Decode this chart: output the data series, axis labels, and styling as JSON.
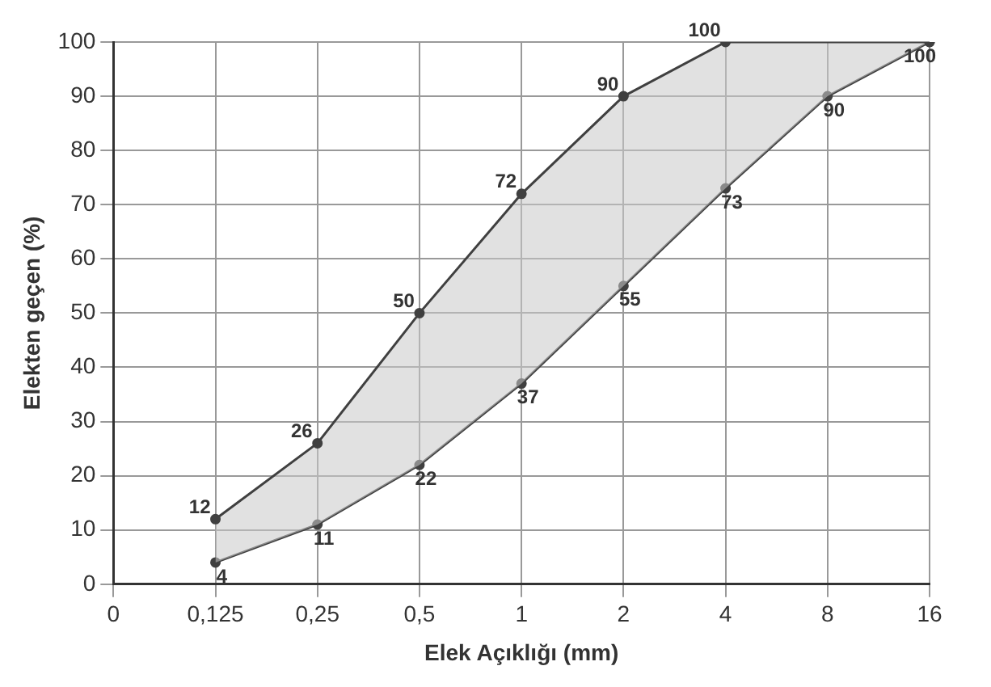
{
  "chart_data": {
    "type": "line",
    "xlabel": "Elek Açıklığı (mm)",
    "ylabel": "Elekten geçen (%)",
    "categories": [
      "0",
      "0,125",
      "0,25",
      "0,5",
      "1",
      "2",
      "4",
      "8",
      "16"
    ],
    "series": [
      {
        "color": "#404040",
        "values": [
          null,
          12,
          26,
          50,
          72,
          90,
          100,
          null,
          100
        ],
        "value_labels": [
          null,
          "12",
          "26",
          "50",
          "72",
          "90",
          "100",
          null,
          null
        ]
      },
      {
        "color": "#404040",
        "values": [
          null,
          4,
          11,
          22,
          37,
          55,
          73,
          90,
          100
        ],
        "value_labels": [
          null,
          "4",
          "11",
          "22",
          "37",
          "55",
          "73",
          "90",
          "100"
        ]
      }
    ],
    "ylim": [
      0,
      100
    ],
    "yticks": [
      0,
      10,
      20,
      30,
      40,
      50,
      60,
      70,
      80,
      90,
      100
    ],
    "grid": true,
    "legend": false,
    "marker": "circle",
    "line_style": "solid"
  }
}
